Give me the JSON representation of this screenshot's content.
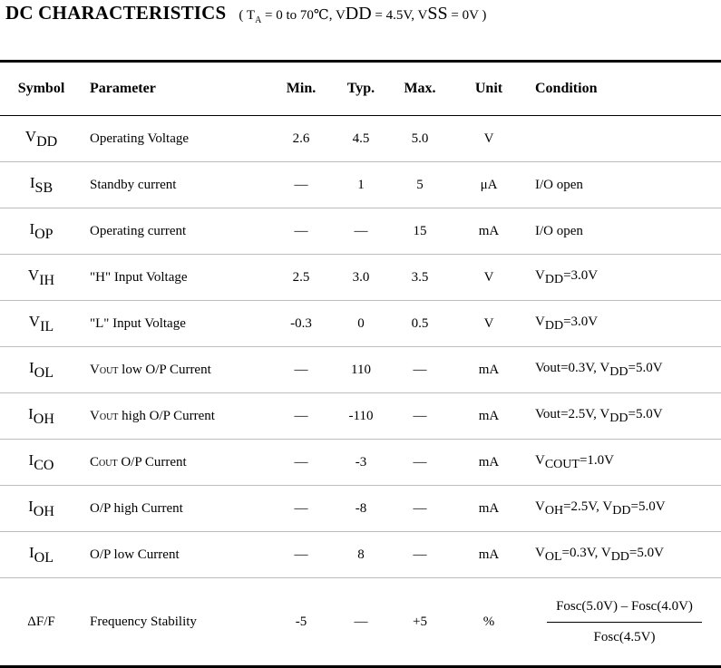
{
  "title": "DC CHARACTERISTICS",
  "conditions": {
    "open": "(",
    "t_var": "T",
    "t_sub": "A",
    "t_val": " = 0 to 70℃, ",
    "vdd_var": "V",
    "vdd_sub": "DD",
    "vdd_val": " = 4.5V, ",
    "vss_var": "V",
    "vss_sub": "SS",
    "vss_val": " = 0V )"
  },
  "headers": {
    "symbol": "Symbol",
    "parameter": "Parameter",
    "min": "Min.",
    "typ": "Typ.",
    "max": "Max.",
    "unit": "Unit",
    "condition": "Condition"
  },
  "rows": [
    {
      "sym": "V",
      "sub": "DD",
      "param": "Operating Voltage",
      "min": "2.6",
      "typ": "4.5",
      "max": "5.0",
      "unit": "V",
      "cond": ""
    },
    {
      "sym": "I",
      "sub": "SB",
      "param": "Standby current",
      "min": "—",
      "typ": "1",
      "max": "5",
      "unit": "μA",
      "cond": "I/O open"
    },
    {
      "sym": "I",
      "sub": "OP",
      "param": "Operating current",
      "min": "—",
      "typ": "—",
      "max": "15",
      "unit": "mA",
      "cond": "I/O open"
    },
    {
      "sym": "V",
      "sub": "IH",
      "param": "\"H\" Input Voltage",
      "min": "2.5",
      "typ": "3.0",
      "max": "3.5",
      "unit": "V",
      "cond_v": "V",
      "cond_sub": "DD",
      "cond_rest": "=3.0V"
    },
    {
      "sym": "V",
      "sub": "IL",
      "param": "\"L\" Input Voltage",
      "min": "-0.3",
      "typ": "0",
      "max": "0.5",
      "unit": "V",
      "cond_v": "V",
      "cond_sub": "DD",
      "cond_rest": "=3.0V"
    },
    {
      "sym": "I",
      "sub": "OL",
      "param_pre": "V",
      "param_sc": "OUT",
      "param_post": " low O/P Current",
      "min": "—",
      "typ": "110",
      "max": "—",
      "unit": "mA",
      "cond_pre": "Vout=0.3V, V",
      "cond_sub": "DD",
      "cond_rest": "=5.0V"
    },
    {
      "sym": "I",
      "sub": "OH",
      "param_pre": "V",
      "param_sc": "OUT",
      "param_post": " high O/P Current",
      "min": "—",
      "typ": "-110",
      "max": "—",
      "unit": "mA",
      "cond_pre": "Vout=2.5V, V",
      "cond_sub": "DD",
      "cond_rest": "=5.0V"
    },
    {
      "sym": "I",
      "sub": "CO",
      "param_pre": "C",
      "param_sc": "OUT",
      "param_post": " O/P Current",
      "min": "—",
      "typ": "-3",
      "max": "—",
      "unit": "mA",
      "cond_v": "V",
      "cond_sub": "COUT",
      "cond_rest": "=1.0V"
    },
    {
      "sym": "I",
      "sub": "OH",
      "param": "O/P high Current",
      "min": "—",
      "typ": "-8",
      "max": "—",
      "unit": "mA",
      "cond_v": "V",
      "cond_sub": "OH",
      "cond_mid": "=2.5V, V",
      "cond_sub2": "DD",
      "cond_rest": "=5.0V"
    },
    {
      "sym": "I",
      "sub": "OL",
      "param": "O/P low Current",
      "min": "—",
      "typ": "8",
      "max": "—",
      "unit": "mA",
      "cond_v": "V",
      "cond_sub": "OL",
      "cond_mid": "=0.3V, V",
      "cond_sub2": "DD",
      "cond_rest": "=5.0V"
    },
    {
      "sym": "ΔF/F",
      "param": "Frequency Stability",
      "min": "-5",
      "typ": "—",
      "max": "+5",
      "unit": "%",
      "cond_num": "Fosc(5.0V) – Fosc(4.0V)",
      "cond_den": "Fosc(4.5V)"
    }
  ]
}
